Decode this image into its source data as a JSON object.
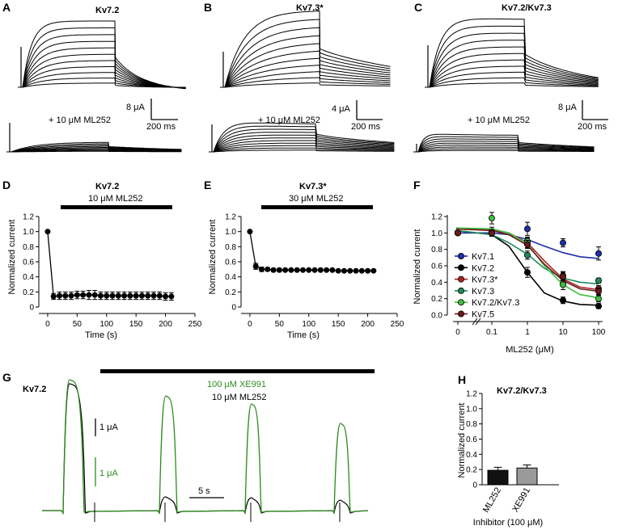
{
  "colors": {
    "black": "#000000",
    "green": "#2e8b1f",
    "inhibitor_ml252": "#111111",
    "inhibitor_xe991": "#9a9a9a"
  },
  "panels": {
    "A": {
      "letter": "A",
      "title": "Kv7.2",
      "drug": "+ 10 μM ML252",
      "scale_current": "8 μA",
      "scale_time": "200 ms"
    },
    "B": {
      "letter": "B",
      "title": "Kv7.3*",
      "drug": "+ 10 μM ML252",
      "scale_current": "4 μA",
      "scale_time": "200 ms"
    },
    "C": {
      "letter": "C",
      "title": "Kv7.2/Kv7.3",
      "drug": "+ 10 μM ML252",
      "scale_current": "8 μA",
      "scale_time": "200 ms"
    },
    "G": {
      "letter": "G",
      "label": "Kv7.2",
      "drug_green": "100 μM XE991",
      "drug_black": "10 μM ML252",
      "scale_black": "1 μA",
      "scale_green": "1 μA",
      "scale_time": "5 s"
    }
  },
  "chart_data": [
    {
      "panel": "D",
      "letter": "D",
      "type": "scatter",
      "title": "Kv7.2",
      "bar_label": "10 μM ML252",
      "xlabel": "Time (s)",
      "ylabel": "Normalized current",
      "xlim": [
        -15,
        250
      ],
      "ylim": [
        0,
        1.2
      ],
      "xticks": [
        "0",
        "50",
        "100",
        "150",
        "200",
        "250"
      ],
      "yticks": [
        "0",
        "0.2",
        "0.4",
        "0.6",
        "0.8",
        "1.0",
        "1.2"
      ],
      "x": [
        0,
        10,
        20,
        30,
        40,
        50,
        60,
        70,
        80,
        90,
        100,
        110,
        120,
        130,
        140,
        150,
        160,
        170,
        180,
        190,
        200,
        210
      ],
      "y": [
        1.0,
        0.14,
        0.15,
        0.15,
        0.15,
        0.16,
        0.16,
        0.16,
        0.16,
        0.15,
        0.15,
        0.15,
        0.15,
        0.15,
        0.15,
        0.15,
        0.15,
        0.15,
        0.15,
        0.15,
        0.14,
        0.14
      ],
      "err": [
        0,
        0.04,
        0.05,
        0.05,
        0.05,
        0.05,
        0.05,
        0.06,
        0.06,
        0.05,
        0.05,
        0.05,
        0.05,
        0.05,
        0.05,
        0.05,
        0.05,
        0.05,
        0.05,
        0.05,
        0.05,
        0.05
      ]
    },
    {
      "panel": "E",
      "letter": "E",
      "type": "scatter",
      "title": "Kv7.3*",
      "bar_label": "30 μM ML252",
      "xlabel": "Time (s)",
      "ylabel": "Normalized current",
      "xlim": [
        -15,
        250
      ],
      "ylim": [
        0,
        1.2
      ],
      "xticks": [
        "0",
        "50",
        "100",
        "150",
        "200",
        "250"
      ],
      "yticks": [
        "0",
        "0.2",
        "0.4",
        "0.6",
        "0.8",
        "1.0",
        "1.2"
      ],
      "x": [
        0,
        10,
        20,
        30,
        40,
        50,
        60,
        70,
        80,
        90,
        100,
        110,
        120,
        130,
        140,
        150,
        160,
        170,
        180,
        190,
        200,
        210
      ],
      "y": [
        1.0,
        0.54,
        0.5,
        0.5,
        0.49,
        0.49,
        0.49,
        0.49,
        0.49,
        0.49,
        0.49,
        0.49,
        0.49,
        0.49,
        0.49,
        0.48,
        0.48,
        0.48,
        0.48,
        0.48,
        0.48,
        0.48
      ],
      "err": [
        0,
        0.04,
        0.03,
        0.02,
        0.02,
        0.02,
        0.01,
        0.01,
        0.01,
        0.01,
        0.01,
        0.01,
        0.01,
        0.01,
        0.01,
        0.01,
        0.01,
        0.01,
        0.01,
        0.01,
        0.01,
        0.01
      ]
    },
    {
      "panel": "F",
      "letter": "F",
      "type": "line",
      "xlabel": "ML252 (μM)",
      "ylabel": "Normalized current",
      "x": [
        0,
        0.1,
        1,
        10,
        100
      ],
      "xticks": [
        "0",
        "0.1",
        "1",
        "10",
        "100"
      ],
      "yticks": [
        "0.0",
        "0.2",
        "0.4",
        "0.6",
        "0.8",
        "1.0",
        "1.2"
      ],
      "ylim": [
        0,
        1.2
      ],
      "legend_position": "left",
      "series": [
        {
          "name": "Kv7.1",
          "color": "#1f2fa8",
          "x": [
            0,
            0.1,
            1,
            10,
            100
          ],
          "y": [
            1.0,
            1.0,
            1.05,
            0.88,
            0.75
          ],
          "err": [
            0,
            0.04,
            0.08,
            0.05,
            0.08
          ],
          "fit": [
            1.0,
            1.0,
            1.0,
            0.98,
            0.92,
            0.84,
            0.76,
            0.71,
            0.69
          ],
          "fit_x": [
            0,
            0.03,
            0.1,
            0.3,
            1,
            3,
            10,
            30,
            100
          ]
        },
        {
          "name": "Kv7.2",
          "color": "#000000",
          "x": [
            0,
            0.1,
            1,
            10,
            100
          ],
          "y": [
            1.0,
            1.02,
            0.52,
            0.18,
            0.11
          ],
          "err": [
            0,
            0.03,
            0.06,
            0.04,
            0.03
          ],
          "fit": [
            1.04,
            1.03,
            0.98,
            0.84,
            0.52,
            0.27,
            0.17,
            0.13,
            0.12
          ],
          "fit_x": [
            0,
            0.03,
            0.1,
            0.3,
            1,
            3,
            10,
            30,
            100
          ]
        },
        {
          "name": "Kv7.3*",
          "color": "#a82323",
          "x": [
            0,
            0.1,
            1,
            10,
            100
          ],
          "y": [
            1.0,
            1.02,
            0.88,
            0.48,
            0.32
          ],
          "err": [
            0,
            0.05,
            0.06,
            0.05,
            0.04
          ],
          "fit": [
            1.05,
            1.05,
            1.04,
            1.0,
            0.88,
            0.66,
            0.44,
            0.34,
            0.31
          ],
          "fit_x": [
            0,
            0.03,
            0.1,
            0.3,
            1,
            3,
            10,
            30,
            100
          ]
        },
        {
          "name": "Kv7.3",
          "color": "#1f8b5a",
          "x": [
            0,
            0.1,
            1,
            10,
            100
          ],
          "y": [
            1.0,
            1.0,
            0.73,
            0.4,
            0.42
          ],
          "err": [
            0,
            0.04,
            0.05,
            0.04,
            0.03
          ],
          "fit": [
            1.04,
            1.03,
            0.98,
            0.88,
            0.74,
            0.57,
            0.45,
            0.4,
            0.38
          ],
          "fit_x": [
            0,
            0.03,
            0.1,
            0.3,
            1,
            3,
            10,
            30,
            100
          ]
        },
        {
          "name": "Kv7.2/Kv7.3",
          "color": "#3fbf3f",
          "x": [
            0,
            0.1,
            1,
            10,
            100
          ],
          "y": [
            1.0,
            1.18,
            0.9,
            0.37,
            0.2
          ],
          "err": [
            0,
            0.07,
            0.05,
            0.06,
            0.04
          ],
          "fit": [
            1.06,
            1.06,
            1.05,
            1.0,
            0.87,
            0.6,
            0.37,
            0.25,
            0.21
          ],
          "fit_x": [
            0,
            0.03,
            0.1,
            0.3,
            1,
            3,
            10,
            30,
            100
          ]
        },
        {
          "name": "Kv7.5",
          "color": "#6b1a1a",
          "x": [
            0,
            0.1,
            1,
            10,
            100
          ],
          "y": [
            1.0,
            1.0,
            0.86,
            0.47,
            0.29
          ],
          "err": [
            0,
            0.04,
            0.05,
            0.05,
            0.04
          ],
          "fit": [
            1.05,
            1.05,
            1.03,
            0.98,
            0.85,
            0.62,
            0.42,
            0.32,
            0.29
          ],
          "fit_x": [
            0,
            0.03,
            0.1,
            0.3,
            1,
            3,
            10,
            30,
            100
          ]
        }
      ]
    },
    {
      "panel": "H",
      "letter": "H",
      "type": "bar",
      "title": "Kv7.2/Kv7.3",
      "categories": [
        "ML252",
        "XE991"
      ],
      "values": [
        0.19,
        0.22
      ],
      "err": [
        0.04,
        0.04
      ],
      "colors": [
        "#111111",
        "#9a9a9a"
      ],
      "xlabel": "Inhibitor (100 μM)",
      "ylabel": "Normalized current",
      "ylim": [
        0,
        1.2
      ],
      "yticks": [
        "0",
        "0.2",
        "0.4",
        "0.6",
        "0.8",
        "1.0",
        "1.2"
      ]
    }
  ]
}
